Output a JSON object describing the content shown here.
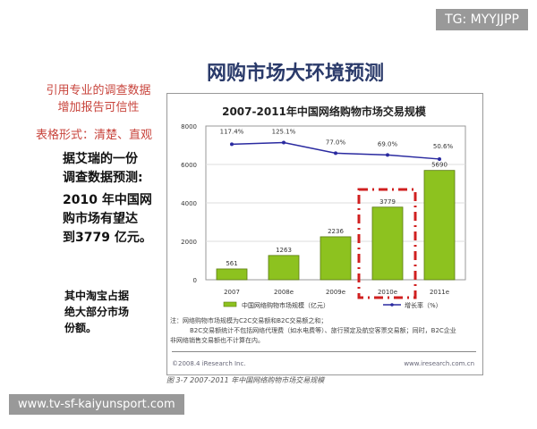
{
  "slide": {
    "title": "网购市场大环境预测",
    "notes_red": [
      "引用专业的调查数据",
      "增加报告可信性",
      "表格形式：清楚、直观"
    ],
    "notes_black1": [
      "据艾瑞的一份",
      "调查数据预测:",
      "2010 年中国网",
      "购市场有望达",
      "到3779 亿元。"
    ],
    "notes_black2": [
      "其中淘宝占据",
      "绝大部分市场",
      "份额。"
    ]
  },
  "chart_data": {
    "type": "bar",
    "title": "2007-2011年中国网络购物市场交易规模",
    "categories": [
      "2007",
      "2008e",
      "2009e",
      "2010e",
      "2011e"
    ],
    "series": [
      {
        "name": "中国网络购物市场规模（亿元）",
        "type": "bar",
        "values": [
          561,
          1263,
          2236,
          3779,
          5690
        ],
        "labels": [
          "561",
          "1263",
          "2236",
          "3779",
          "5690"
        ],
        "color": "#8dc21f"
      },
      {
        "name": "增长率（%）",
        "type": "line",
        "values": [
          117.4,
          125.1,
          77.0,
          69.0,
          50.6
        ],
        "labels": [
          "117.4%",
          "125.1%",
          "77.0%",
          "69.0%",
          "50.6%"
        ],
        "color": "#2a2aa0"
      }
    ],
    "yticks": [
      "0",
      "2000",
      "4000",
      "6000",
      "8000"
    ],
    "ylim": [
      0,
      8000
    ],
    "grid": true,
    "legend": "bottom",
    "highlight": "2010e",
    "note": [
      "注：网络购物市场规模为C2C交易额和B2C交易额之和；",
      "B2C交易额统计不包括网络代理费（如水电费等）、旅行预定及航空客票交易额；同时，B2C企业",
      "非网络销售交易额也不计算在内。"
    ],
    "footer_left": "©2008.4 iResearch Inc.",
    "footer_right": "www.iresearch.com.cn",
    "caption": "图 3-7 2007-2011 年中国网络购物市场交易规模"
  },
  "watermarks": {
    "top": "TG: MYYJJPP",
    "bottom": "www.tv-sf-kaiyunsport.com"
  }
}
